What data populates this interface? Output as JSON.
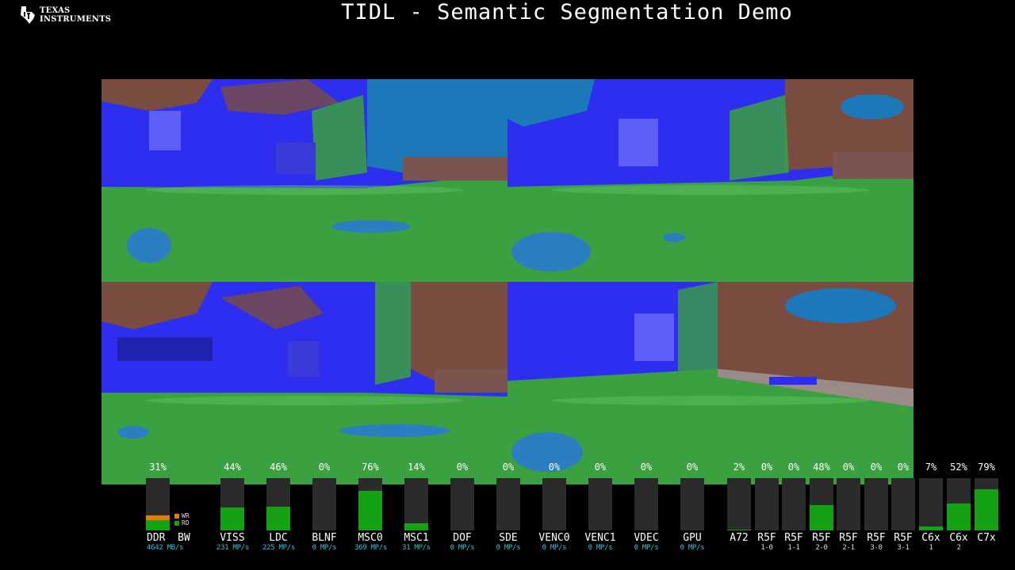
{
  "header": {
    "logo_line1": "Texas",
    "logo_line2": "Instruments",
    "title": "TIDL - Semantic Segmentation Demo"
  },
  "colors": {
    "bar_fill": "#14a214",
    "bar_bg": "#2b2b2b",
    "write": "#f07800",
    "subtext": "#2ec4d6"
  },
  "views": [
    {
      "name": "camera-view-1"
    },
    {
      "name": "camera-view-2"
    },
    {
      "name": "camera-view-3"
    },
    {
      "name": "camera-view-4"
    }
  ],
  "ddr": {
    "pct": "31%",
    "label": "DDR  BW",
    "sub": "4642 MB/s",
    "legend_wr": "WR",
    "legend_rd": "RD"
  },
  "hwa": [
    {
      "pct": "44%",
      "label": "VISS",
      "sub": "231 MP/s",
      "level": 0.44
    },
    {
      "pct": "46%",
      "label": "LDC",
      "sub": "225 MP/s",
      "level": 0.46
    },
    {
      "pct": "0%",
      "label": "BLNF",
      "sub": "0 MP/s",
      "level": 0
    },
    {
      "pct": "76%",
      "label": "MSC0",
      "sub": "369 MP/s",
      "level": 0.76
    },
    {
      "pct": "14%",
      "label": "MSC1",
      "sub": "31 MP/s",
      "level": 0.14
    },
    {
      "pct": "0%",
      "label": "DOF",
      "sub": "0 MP/s",
      "level": 0
    },
    {
      "pct": "0%",
      "label": "SDE",
      "sub": "0 MP/s",
      "level": 0
    },
    {
      "pct": "0%",
      "label": "VENC0",
      "sub": "0 MP/s",
      "level": 0
    },
    {
      "pct": "0%",
      "label": "VENC1",
      "sub": "0 MP/s",
      "level": 0
    },
    {
      "pct": "0%",
      "label": "VDEC",
      "sub": "0 MP/s",
      "level": 0
    },
    {
      "pct": "0%",
      "label": "GPU",
      "sub": "0 MP/s",
      "level": 0
    }
  ],
  "cpu": [
    {
      "pct": "2%",
      "label": "A72",
      "sub": "",
      "level": 0.02
    },
    {
      "pct": "0%",
      "label": "R5F",
      "sub": "1-0",
      "level": 0
    },
    {
      "pct": "0%",
      "label": "R5F",
      "sub": "1-1",
      "level": 0
    },
    {
      "pct": "48%",
      "label": "R5F",
      "sub": "2-0",
      "level": 0.48
    },
    {
      "pct": "0%",
      "label": "R5F",
      "sub": "2-1",
      "level": 0
    },
    {
      "pct": "0%",
      "label": "R5F",
      "sub": "3-0",
      "level": 0
    },
    {
      "pct": "0%",
      "label": "R5F",
      "sub": "3-1",
      "level": 0
    },
    {
      "pct": "7%",
      "label": "C6x",
      "sub": "1",
      "level": 0.07
    },
    {
      "pct": "52%",
      "label": "C6x",
      "sub": "2",
      "level": 0.52
    },
    {
      "pct": "79%",
      "label": "C7x",
      "sub": "",
      "level": 0.79
    }
  ]
}
